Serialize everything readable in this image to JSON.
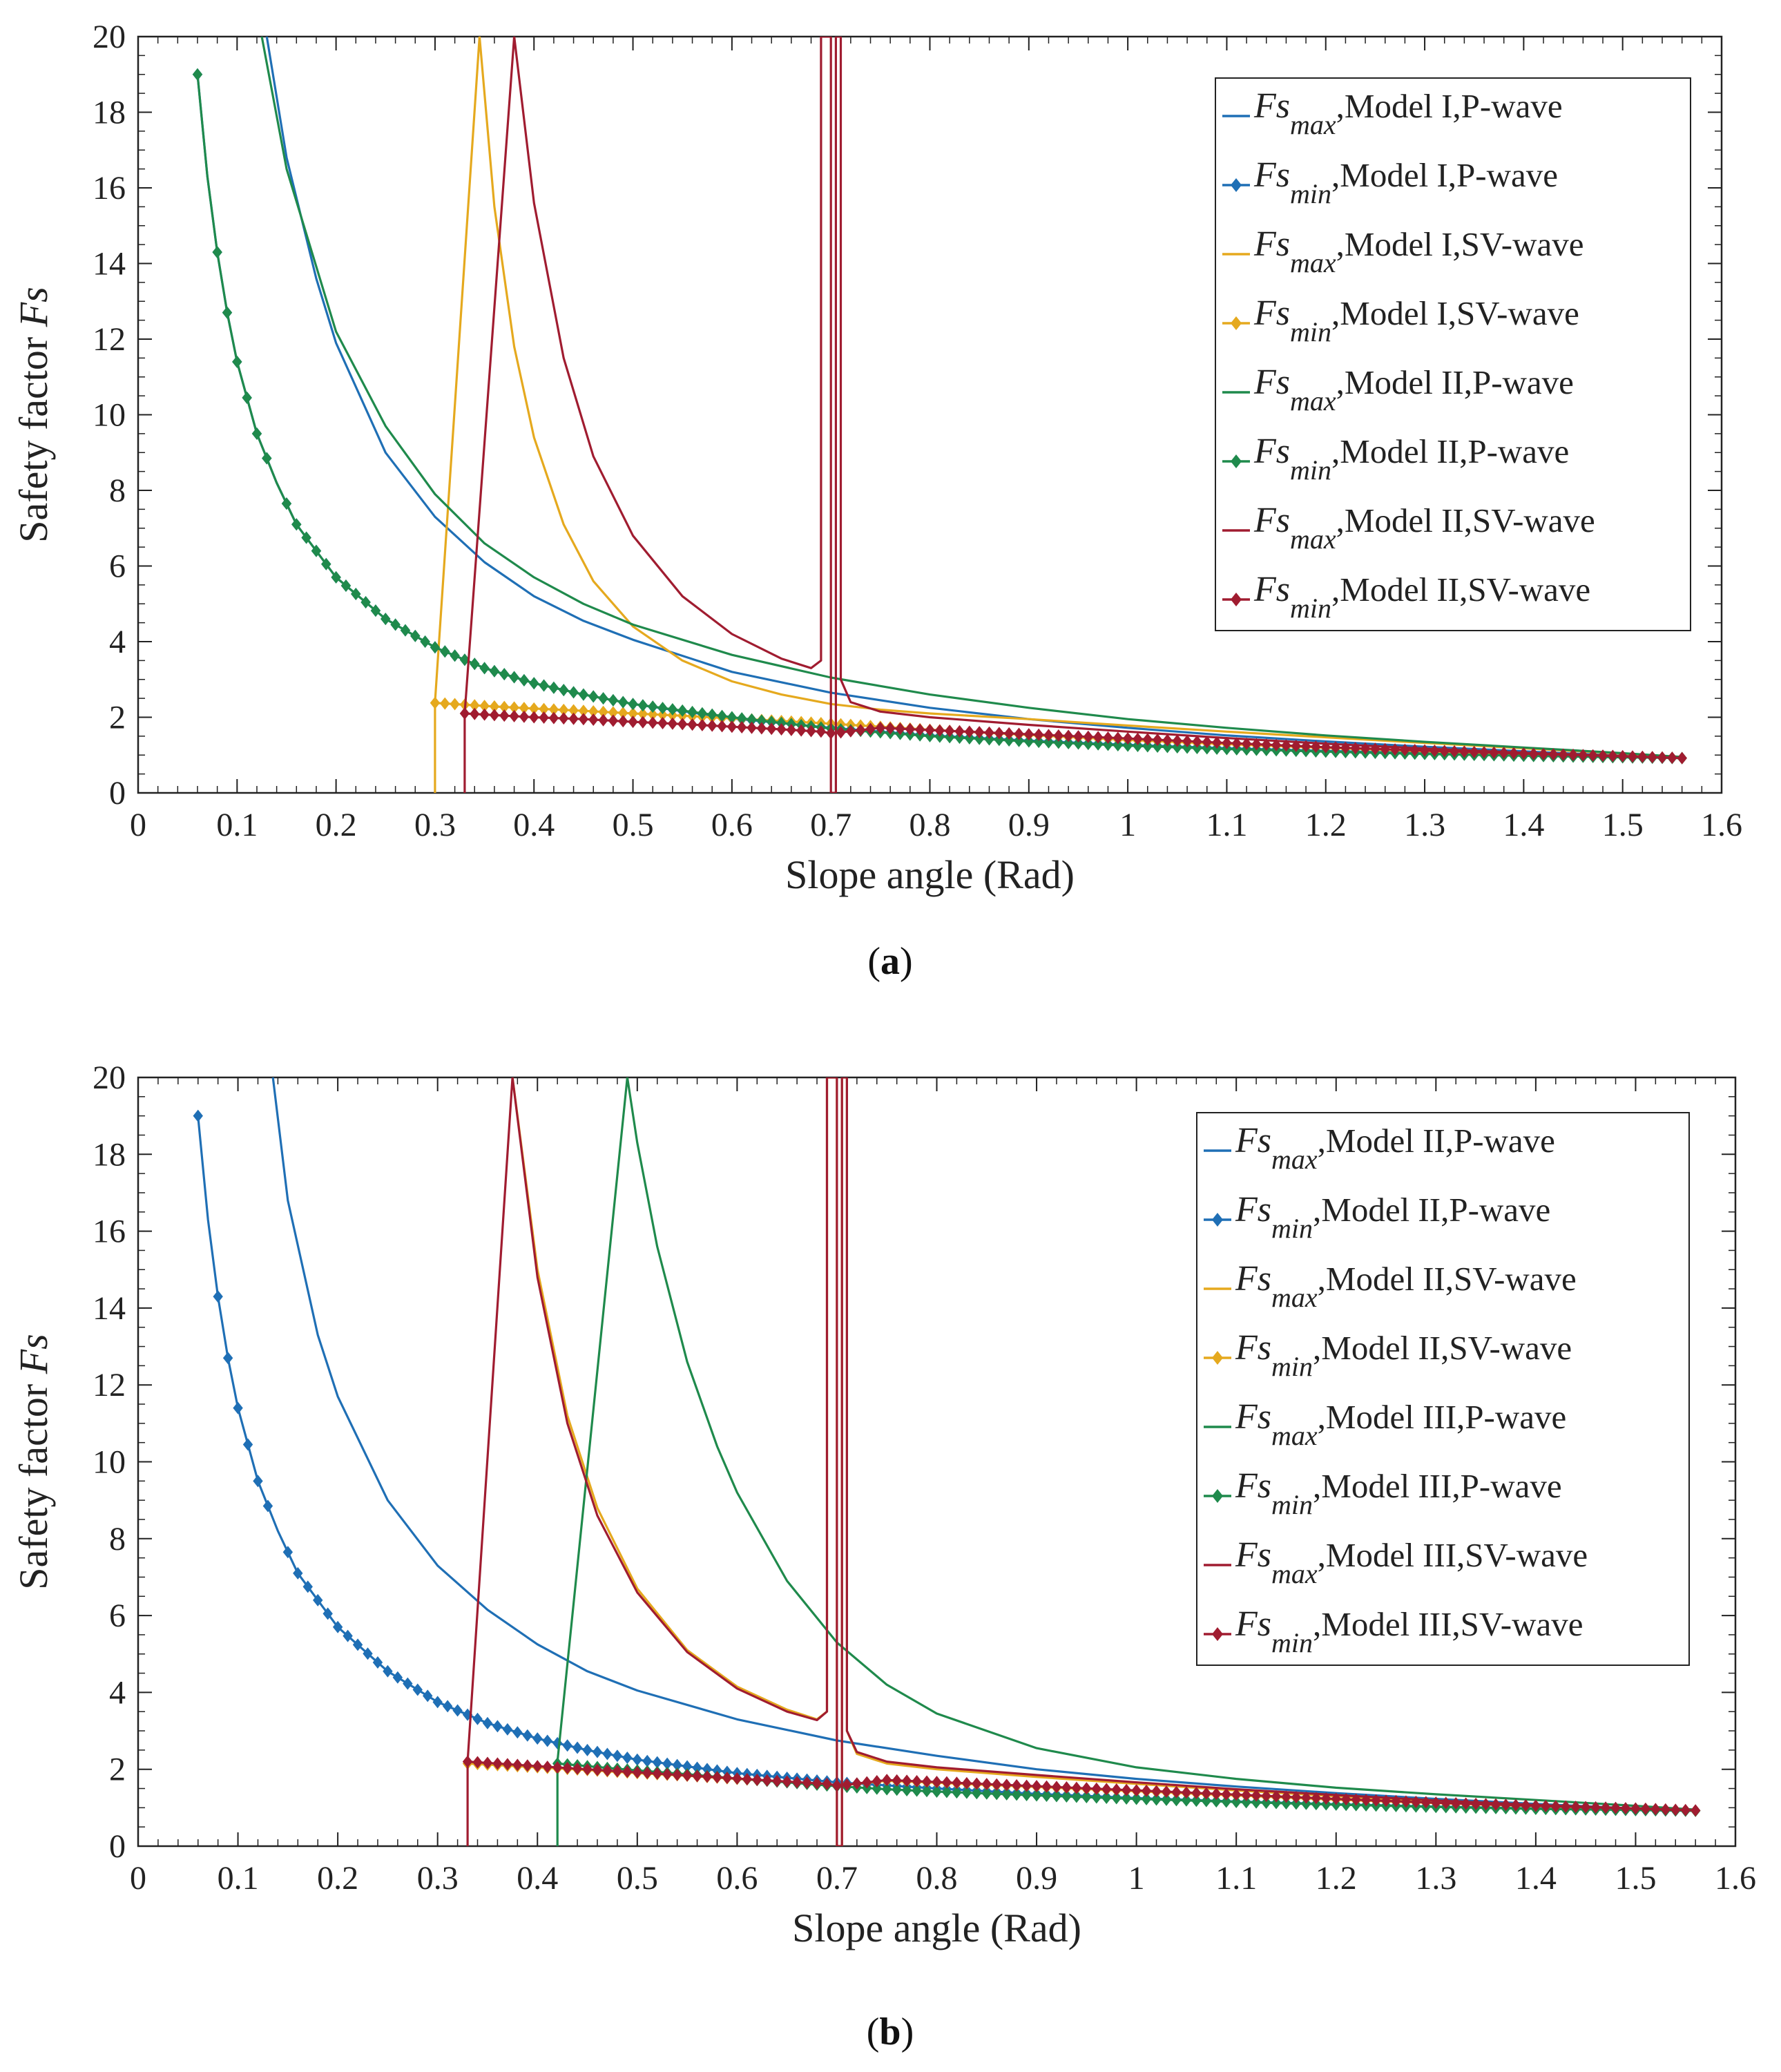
{
  "figure": {
    "caption_a": "a",
    "caption_b": "b"
  },
  "chart_data": [
    {
      "id": "a",
      "type": "line",
      "caption": "(a)",
      "xlabel": "Slope angle (Rad)",
      "ylabel_prefix": "Safety factor ",
      "ylabel_symbol": "Fs",
      "xlim": [
        0,
        1.6
      ],
      "ylim": [
        0,
        20
      ],
      "xticks": [
        "0",
        "0.1",
        "0.2",
        "0.3",
        "0.4",
        "0.5",
        "0.6",
        "0.7",
        "0.8",
        "0.9",
        "1",
        "1.1",
        "1.2",
        "1.3",
        "1.4",
        "1.5",
        "1.6"
      ],
      "yticks": [
        "0",
        "2",
        "4",
        "6",
        "8",
        "10",
        "12",
        "14",
        "16",
        "18",
        "20"
      ],
      "legend_position": "top-right",
      "series": [
        {
          "sym": "Fs",
          "sub": "max",
          "rest": ",Model I,P-wave",
          "color": "#1f6fb5",
          "marker": false,
          "x": [
            0.13,
            0.15,
            0.18,
            0.2,
            0.25,
            0.3,
            0.35,
            0.4,
            0.45,
            0.5,
            0.6,
            0.7,
            0.8,
            0.9,
            1.0,
            1.1,
            1.2,
            1.3,
            1.4,
            1.5,
            1.56
          ],
          "y": [
            20,
            16.8,
            13.6,
            11.9,
            9.0,
            7.3,
            6.1,
            5.2,
            4.55,
            4.05,
            3.2,
            2.65,
            2.25,
            1.95,
            1.72,
            1.52,
            1.36,
            1.22,
            1.1,
            0.98,
            0.92
          ]
        },
        {
          "sym": "Fs",
          "sub": "min",
          "rest": ",Model I,P-wave",
          "color": "#1f6fb5",
          "marker": true,
          "x": [
            0.06,
            0.07,
            0.08,
            0.09,
            0.1,
            0.12,
            0.14,
            0.16,
            0.2,
            0.25,
            0.3,
            0.35,
            0.4,
            0.45,
            0.5,
            0.6,
            0.7,
            0.8,
            0.9,
            1.0,
            1.1,
            1.2,
            1.3,
            1.4,
            1.5,
            1.56
          ],
          "y": [
            19.0,
            16.3,
            14.3,
            12.7,
            11.4,
            9.5,
            8.2,
            7.1,
            5.7,
            4.6,
            3.85,
            3.3,
            2.9,
            2.6,
            2.35,
            1.97,
            1.72,
            1.52,
            1.38,
            1.27,
            1.18,
            1.11,
            1.05,
            1.0,
            0.95,
            0.92
          ]
        },
        {
          "sym": "Fs",
          "sub": "max",
          "rest": ",Model I,SV-wave",
          "color": "#e5a91e",
          "marker": false,
          "x": [
            0.3,
            0.3,
            0.345,
            0.36,
            0.38,
            0.4,
            0.43,
            0.46,
            0.5,
            0.55,
            0.6,
            0.65,
            0.7,
            0.75,
            0.8,
            0.9,
            1.0,
            1.1,
            1.2,
            1.3,
            1.4,
            1.5,
            1.56
          ],
          "y": [
            0,
            2.4,
            20,
            15.5,
            11.8,
            9.4,
            7.1,
            5.6,
            4.4,
            3.5,
            2.95,
            2.6,
            2.35,
            2.2,
            2.1,
            1.95,
            1.78,
            1.62,
            1.47,
            1.32,
            1.18,
            1.04,
            0.95
          ]
        },
        {
          "sym": "Fs",
          "sub": "min",
          "rest": ",Model I,SV-wave",
          "color": "#e5a91e",
          "marker": true,
          "x": [
            0.3,
            0.35,
            0.4,
            0.45,
            0.5,
            0.55,
            0.6,
            0.65,
            0.7,
            0.75,
            0.8,
            0.9,
            1.0,
            1.1,
            1.2,
            1.3,
            1.4,
            1.5,
            1.56
          ],
          "y": [
            2.38,
            2.3,
            2.23,
            2.17,
            2.1,
            2.04,
            1.97,
            1.9,
            1.83,
            1.75,
            1.67,
            1.53,
            1.4,
            1.29,
            1.19,
            1.1,
            1.03,
            0.96,
            0.92
          ]
        },
        {
          "sym": "Fs",
          "sub": "max",
          "rest": ",Model II,P-wave",
          "color": "#1f8a4c",
          "marker": false,
          "x": [
            0.125,
            0.15,
            0.2,
            0.25,
            0.3,
            0.35,
            0.4,
            0.45,
            0.5,
            0.6,
            0.7,
            0.8,
            0.9,
            1.0,
            1.1,
            1.2,
            1.3,
            1.4,
            1.5,
            1.56
          ],
          "y": [
            20,
            16.5,
            12.2,
            9.7,
            7.9,
            6.6,
            5.7,
            5.0,
            4.45,
            3.65,
            3.05,
            2.6,
            2.25,
            1.95,
            1.72,
            1.52,
            1.35,
            1.2,
            1.05,
            0.95
          ]
        },
        {
          "sym": "Fs",
          "sub": "min",
          "rest": ",Model II,P-wave",
          "color": "#1f8a4c",
          "marker": true,
          "x": [
            0.06,
            0.07,
            0.08,
            0.09,
            0.1,
            0.12,
            0.14,
            0.16,
            0.2,
            0.25,
            0.3,
            0.35,
            0.4,
            0.45,
            0.5,
            0.6,
            0.7,
            0.8,
            0.9,
            1.0,
            1.1,
            1.2,
            1.3,
            1.4,
            1.5,
            1.56
          ],
          "y": [
            19.0,
            16.3,
            14.3,
            12.7,
            11.4,
            9.5,
            8.2,
            7.1,
            5.7,
            4.6,
            3.85,
            3.3,
            2.9,
            2.6,
            2.35,
            2.0,
            1.7,
            1.5,
            1.36,
            1.25,
            1.16,
            1.09,
            1.03,
            0.98,
            0.94,
            0.92
          ]
        },
        {
          "sym": "Fs",
          "sub": "max",
          "rest": ",Model II,SV-wave",
          "color": "#a01c30",
          "marker": false,
          "x": [
            0.33,
            0.33,
            0.38,
            0.4,
            0.43,
            0.46,
            0.5,
            0.55,
            0.6,
            0.65,
            0.68,
            0.69,
            0.69,
            0.7,
            0.7,
            0.705,
            0.705,
            0.71,
            0.71,
            0.72,
            0.75,
            0.8,
            0.9,
            1.0,
            1.1,
            1.2,
            1.3,
            1.4,
            1.5,
            1.56
          ],
          "y": [
            0,
            2.1,
            20,
            15.6,
            11.5,
            8.9,
            6.8,
            5.2,
            4.2,
            3.55,
            3.3,
            3.5,
            20,
            20,
            0,
            0,
            20,
            20,
            3.0,
            2.4,
            2.15,
            2.0,
            1.8,
            1.62,
            1.45,
            1.3,
            1.17,
            1.06,
            0.97,
            0.92
          ]
        },
        {
          "sym": "Fs",
          "sub": "min",
          "rest": ",Model II,SV-wave",
          "color": "#a01c30",
          "marker": true,
          "x": [
            0.33,
            0.4,
            0.45,
            0.5,
            0.55,
            0.6,
            0.65,
            0.69,
            0.7,
            0.71,
            0.75,
            0.8,
            0.9,
            1.0,
            1.1,
            1.2,
            1.3,
            1.4,
            1.5,
            1.56
          ],
          "y": [
            2.1,
            2.0,
            1.95,
            1.88,
            1.82,
            1.75,
            1.68,
            1.62,
            1.58,
            1.6,
            1.72,
            1.66,
            1.55,
            1.44,
            1.32,
            1.21,
            1.12,
            1.04,
            0.97,
            0.92
          ]
        }
      ]
    },
    {
      "id": "b",
      "type": "line",
      "caption": "(b)",
      "xlabel": "Slope angle (Rad)",
      "ylabel_prefix": "Safety factor ",
      "ylabel_symbol": "Fs",
      "xlim": [
        0,
        1.6
      ],
      "ylim": [
        0,
        20
      ],
      "xticks": [
        "0",
        "0.1",
        "0.2",
        "0.3",
        "0.4",
        "0.5",
        "0.6",
        "0.7",
        "0.8",
        "0.9",
        "1",
        "1.1",
        "1.2",
        "1.3",
        "1.4",
        "1.5",
        "1.6"
      ],
      "yticks": [
        "0",
        "2",
        "4",
        "6",
        "8",
        "10",
        "12",
        "14",
        "16",
        "18",
        "20"
      ],
      "legend_position": "right",
      "series": [
        {
          "sym": "Fs",
          "sub": "max",
          "rest": ",Model II,P-wave",
          "color": "#1f6fb5",
          "marker": false,
          "x": [
            0.135,
            0.15,
            0.18,
            0.2,
            0.25,
            0.3,
            0.35,
            0.4,
            0.45,
            0.5,
            0.6,
            0.7,
            0.8,
            0.9,
            1.0,
            1.1,
            1.2,
            1.3,
            1.4,
            1.5,
            1.56
          ],
          "y": [
            20,
            16.8,
            13.3,
            11.7,
            9.0,
            7.3,
            6.15,
            5.25,
            4.55,
            4.05,
            3.3,
            2.75,
            2.35,
            2.0,
            1.75,
            1.55,
            1.38,
            1.23,
            1.1,
            0.98,
            0.92
          ]
        },
        {
          "sym": "Fs",
          "sub": "min",
          "rest": ",Model II,P-wave",
          "color": "#1f6fb5",
          "marker": true,
          "x": [
            0.06,
            0.07,
            0.08,
            0.09,
            0.1,
            0.12,
            0.14,
            0.16,
            0.2,
            0.25,
            0.3,
            0.35,
            0.4,
            0.45,
            0.5,
            0.6,
            0.7,
            0.8,
            0.9,
            1.0,
            1.1,
            1.2,
            1.3,
            1.4,
            1.5,
            1.56
          ],
          "y": [
            19.0,
            16.3,
            14.3,
            12.7,
            11.4,
            9.5,
            8.2,
            7.1,
            5.7,
            4.55,
            3.75,
            3.2,
            2.8,
            2.5,
            2.25,
            1.9,
            1.66,
            1.5,
            1.36,
            1.25,
            1.16,
            1.09,
            1.03,
            0.98,
            0.94,
            0.92
          ]
        },
        {
          "sym": "Fs",
          "sub": "max",
          "rest": ",Model II,SV-wave",
          "color": "#e5a91e",
          "marker": false,
          "x": [
            0.375,
            0.4,
            0.43,
            0.46,
            0.5,
            0.55,
            0.6,
            0.65,
            0.68,
            0.69,
            0.69,
            0.7,
            0.7,
            0.705,
            0.705,
            0.71,
            0.71,
            0.72,
            0.75,
            0.8,
            0.9,
            1.0,
            1.1,
            1.2,
            1.3,
            1.4,
            1.5,
            1.56
          ],
          "y": [
            20,
            15.0,
            11.2,
            8.8,
            6.7,
            5.1,
            4.15,
            3.55,
            3.3,
            3.5,
            20,
            20,
            0,
            0,
            20,
            20,
            3.0,
            2.4,
            2.15,
            2.0,
            1.8,
            1.62,
            1.45,
            1.3,
            1.17,
            1.06,
            0.97,
            0.92
          ]
        },
        {
          "sym": "Fs",
          "sub": "min",
          "rest": ",Model II,SV-wave",
          "color": "#e5a91e",
          "marker": true,
          "x": [
            0.33,
            0.4,
            0.45,
            0.5,
            0.55,
            0.6,
            0.65,
            0.69,
            0.7,
            0.71,
            0.75,
            0.8,
            0.9,
            1.0,
            1.1,
            1.2,
            1.3,
            1.4,
            1.5,
            1.56
          ],
          "y": [
            2.15,
            2.05,
            1.98,
            1.9,
            1.83,
            1.75,
            1.67,
            1.6,
            1.57,
            1.6,
            1.7,
            1.65,
            1.54,
            1.43,
            1.32,
            1.21,
            1.12,
            1.04,
            0.97,
            0.92
          ]
        },
        {
          "sym": "Fs",
          "sub": "max",
          "rest": ",Model III,P-wave",
          "color": "#1f8a4c",
          "marker": false,
          "x": [
            0.42,
            0.42,
            0.49,
            0.5,
            0.52,
            0.55,
            0.58,
            0.6,
            0.65,
            0.7,
            0.75,
            0.8,
            0.9,
            1.0,
            1.1,
            1.2,
            1.3,
            1.4,
            1.5,
            1.56
          ],
          "y": [
            0,
            2.2,
            20,
            18.3,
            15.6,
            12.6,
            10.4,
            9.2,
            6.9,
            5.3,
            4.2,
            3.45,
            2.55,
            2.05,
            1.75,
            1.52,
            1.35,
            1.2,
            1.05,
            0.95
          ]
        },
        {
          "sym": "Fs",
          "sub": "min",
          "rest": ",Model III,P-wave",
          "color": "#1f8a4c",
          "marker": true,
          "x": [
            0.42,
            0.45,
            0.5,
            0.55,
            0.6,
            0.65,
            0.7,
            0.75,
            0.8,
            0.9,
            1.0,
            1.1,
            1.2,
            1.3,
            1.4,
            1.5,
            1.56
          ],
          "y": [
            2.15,
            2.08,
            1.97,
            1.87,
            1.76,
            1.66,
            1.56,
            1.48,
            1.42,
            1.32,
            1.23,
            1.15,
            1.08,
            1.02,
            0.97,
            0.94,
            0.92
          ]
        },
        {
          "sym": "Fs",
          "sub": "max",
          "rest": ",Model III,SV-wave",
          "color": "#a01c30",
          "marker": false,
          "x": [
            0.33,
            0.33,
            0.375,
            0.4,
            0.43,
            0.46,
            0.5,
            0.55,
            0.6,
            0.65,
            0.68,
            0.69,
            0.69,
            0.7,
            0.7,
            0.705,
            0.705,
            0.71,
            0.71,
            0.72,
            0.75,
            0.8,
            0.9,
            1.0,
            1.1,
            1.2,
            1.3,
            1.4,
            1.5,
            1.56
          ],
          "y": [
            0,
            2.2,
            20,
            14.8,
            11.0,
            8.6,
            6.6,
            5.05,
            4.1,
            3.5,
            3.28,
            3.5,
            20,
            20,
            0,
            0,
            20,
            20,
            3.0,
            2.45,
            2.2,
            2.05,
            1.85,
            1.66,
            1.48,
            1.33,
            1.19,
            1.07,
            0.98,
            0.93
          ]
        },
        {
          "sym": "Fs",
          "sub": "min",
          "rest": ",Model III,SV-wave",
          "color": "#a01c30",
          "marker": true,
          "x": [
            0.33,
            0.4,
            0.45,
            0.5,
            0.55,
            0.6,
            0.65,
            0.69,
            0.7,
            0.71,
            0.75,
            0.8,
            0.9,
            1.0,
            1.1,
            1.2,
            1.3,
            1.4,
            1.5,
            1.56
          ],
          "y": [
            2.2,
            2.08,
            2.0,
            1.92,
            1.84,
            1.76,
            1.68,
            1.62,
            1.58,
            1.6,
            1.72,
            1.67,
            1.56,
            1.45,
            1.34,
            1.23,
            1.13,
            1.05,
            0.98,
            0.93
          ]
        }
      ]
    }
  ]
}
